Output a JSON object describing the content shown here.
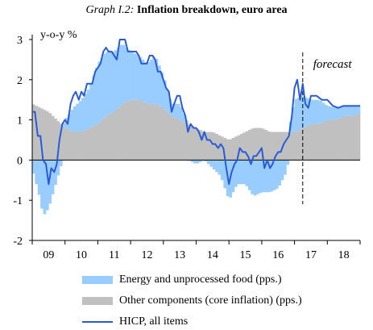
{
  "title": {
    "prefix": "Graph I.2:",
    "main": "Inflation breakdown, euro area"
  },
  "colors": {
    "energy": "#99ccff",
    "core": "#c0c0c0",
    "hicp": "#2a5bd7",
    "axis": "#000000"
  },
  "chart_data": {
    "type": "bar",
    "ylabel": "y-o-y %",
    "ylim": [
      -2,
      3
    ],
    "yticks": [
      -2,
      -1,
      0,
      1,
      2,
      3
    ],
    "x_start": 2009,
    "x_end": 2019,
    "xticks": [
      "09",
      "10",
      "11",
      "12",
      "13",
      "14",
      "15",
      "16",
      "17",
      "18"
    ],
    "forecast_label": "forecast",
    "forecast_start": 2017.25,
    "legend": [
      {
        "key": "energy",
        "label": "Energy and unprocessed food (pps.)"
      },
      {
        "key": "core",
        "label": "Other components (core inflation) (pps.)"
      },
      {
        "key": "hicp",
        "label": "HICP, all items"
      }
    ],
    "core_points": [
      [
        2009.0,
        1.4
      ],
      [
        2009.25,
        1.3
      ],
      [
        2009.5,
        1.2
      ],
      [
        2009.75,
        1.0
      ],
      [
        2010.0,
        0.8
      ],
      [
        2010.25,
        0.7
      ],
      [
        2010.5,
        0.7
      ],
      [
        2010.75,
        0.8
      ],
      [
        2011.0,
        0.9
      ],
      [
        2011.25,
        1.1
      ],
      [
        2011.5,
        1.2
      ],
      [
        2011.75,
        1.4
      ],
      [
        2012.0,
        1.5
      ],
      [
        2012.25,
        1.5
      ],
      [
        2012.5,
        1.4
      ],
      [
        2012.75,
        1.4
      ],
      [
        2013.0,
        1.3
      ],
      [
        2013.25,
        1.1
      ],
      [
        2013.5,
        1.0
      ],
      [
        2013.75,
        0.9
      ],
      [
        2014.0,
        0.8
      ],
      [
        2014.25,
        0.7
      ],
      [
        2014.5,
        0.7
      ],
      [
        2014.75,
        0.6
      ],
      [
        2015.0,
        0.5
      ],
      [
        2015.25,
        0.6
      ],
      [
        2015.5,
        0.7
      ],
      [
        2015.75,
        0.8
      ],
      [
        2016.0,
        0.8
      ],
      [
        2016.25,
        0.7
      ],
      [
        2016.5,
        0.7
      ],
      [
        2016.75,
        0.7
      ],
      [
        2017.0,
        0.7
      ],
      [
        2017.25,
        0.8
      ],
      [
        2017.5,
        0.9
      ],
      [
        2017.75,
        0.9
      ],
      [
        2018.0,
        1.0
      ],
      [
        2018.25,
        1.0
      ],
      [
        2018.5,
        1.1
      ],
      [
        2018.75,
        1.1
      ],
      [
        2019.0,
        1.15
      ]
    ],
    "energy_points": [
      [
        2009.0,
        -0.2
      ],
      [
        2009.25,
        -1.0
      ],
      [
        2009.33,
        -1.4
      ],
      [
        2009.5,
        -1.2
      ],
      [
        2009.75,
        -0.5
      ],
      [
        2010.0,
        0.2
      ],
      [
        2010.25,
        0.6
      ],
      [
        2010.5,
        0.8
      ],
      [
        2010.75,
        1.0
      ],
      [
        2011.0,
        1.5
      ],
      [
        2011.25,
        1.6
      ],
      [
        2011.5,
        1.5
      ],
      [
        2011.75,
        1.5
      ],
      [
        2012.0,
        1.2
      ],
      [
        2012.25,
        1.1
      ],
      [
        2012.5,
        1.0
      ],
      [
        2012.75,
        1.2
      ],
      [
        2013.0,
        0.8
      ],
      [
        2013.25,
        0.3
      ],
      [
        2013.5,
        0.4
      ],
      [
        2013.75,
        0.0
      ],
      [
        2014.0,
        -0.1
      ],
      [
        2014.25,
        0.0
      ],
      [
        2014.5,
        -0.2
      ],
      [
        2014.75,
        -0.4
      ],
      [
        2015.0,
        -1.0
      ],
      [
        2015.25,
        -0.6
      ],
      [
        2015.5,
        -0.6
      ],
      [
        2015.75,
        -0.9
      ],
      [
        2016.0,
        -0.8
      ],
      [
        2016.25,
        -0.8
      ],
      [
        2016.5,
        -0.7
      ],
      [
        2016.75,
        -0.3
      ],
      [
        2017.0,
        0.8
      ],
      [
        2017.25,
        0.8
      ],
      [
        2017.5,
        0.6
      ],
      [
        2017.75,
        0.6
      ],
      [
        2018.0,
        0.35
      ],
      [
        2018.25,
        0.3
      ],
      [
        2018.5,
        0.25
      ],
      [
        2018.75,
        0.25
      ],
      [
        2019.0,
        0.2
      ]
    ],
    "hicp": [
      [
        2009.0,
        1.2
      ],
      [
        2009.08,
        1.2
      ],
      [
        2009.17,
        0.6
      ],
      [
        2009.25,
        0.6
      ],
      [
        2009.33,
        0.0
      ],
      [
        2009.42,
        -0.1
      ],
      [
        2009.5,
        -0.6
      ],
      [
        2009.58,
        -0.2
      ],
      [
        2009.67,
        -0.3
      ],
      [
        2009.75,
        -0.1
      ],
      [
        2009.83,
        0.5
      ],
      [
        2009.92,
        0.9
      ],
      [
        2010.0,
        1.0
      ],
      [
        2010.08,
        0.9
      ],
      [
        2010.17,
        1.4
      ],
      [
        2010.25,
        1.6
      ],
      [
        2010.33,
        1.7
      ],
      [
        2010.42,
        1.5
      ],
      [
        2010.5,
        1.7
      ],
      [
        2010.58,
        1.6
      ],
      [
        2010.67,
        1.9
      ],
      [
        2010.75,
        1.9
      ],
      [
        2010.83,
        1.9
      ],
      [
        2010.92,
        2.2
      ],
      [
        2011.0,
        2.3
      ],
      [
        2011.08,
        2.4
      ],
      [
        2011.17,
        2.7
      ],
      [
        2011.25,
        2.8
      ],
      [
        2011.33,
        2.7
      ],
      [
        2011.42,
        2.7
      ],
      [
        2011.5,
        2.6
      ],
      [
        2011.58,
        2.5
      ],
      [
        2011.67,
        3.0
      ],
      [
        2011.75,
        3.0
      ],
      [
        2011.83,
        3.0
      ],
      [
        2011.92,
        2.7
      ],
      [
        2012.0,
        2.7
      ],
      [
        2012.08,
        2.7
      ],
      [
        2012.17,
        2.7
      ],
      [
        2012.25,
        2.6
      ],
      [
        2012.33,
        2.4
      ],
      [
        2012.42,
        2.4
      ],
      [
        2012.5,
        2.4
      ],
      [
        2012.58,
        2.6
      ],
      [
        2012.67,
        2.6
      ],
      [
        2012.75,
        2.5
      ],
      [
        2012.83,
        2.2
      ],
      [
        2012.92,
        2.2
      ],
      [
        2013.0,
        2.0
      ],
      [
        2013.08,
        1.8
      ],
      [
        2013.17,
        1.7
      ],
      [
        2013.25,
        1.2
      ],
      [
        2013.33,
        1.4
      ],
      [
        2013.42,
        1.6
      ],
      [
        2013.5,
        1.6
      ],
      [
        2013.58,
        1.3
      ],
      [
        2013.67,
        1.1
      ],
      [
        2013.75,
        0.7
      ],
      [
        2013.83,
        0.9
      ],
      [
        2013.92,
        0.8
      ],
      [
        2014.0,
        0.8
      ],
      [
        2014.08,
        0.7
      ],
      [
        2014.17,
        0.5
      ],
      [
        2014.25,
        0.7
      ],
      [
        2014.33,
        0.5
      ],
      [
        2014.42,
        0.5
      ],
      [
        2014.5,
        0.4
      ],
      [
        2014.58,
        0.4
      ],
      [
        2014.67,
        0.3
      ],
      [
        2014.75,
        0.4
      ],
      [
        2014.83,
        0.3
      ],
      [
        2014.92,
        -0.2
      ],
      [
        2015.0,
        -0.6
      ],
      [
        2015.08,
        -0.3
      ],
      [
        2015.17,
        -0.1
      ],
      [
        2015.25,
        0.0
      ],
      [
        2015.33,
        0.3
      ],
      [
        2015.42,
        0.2
      ],
      [
        2015.5,
        0.2
      ],
      [
        2015.58,
        0.1
      ],
      [
        2015.67,
        -0.1
      ],
      [
        2015.75,
        0.1
      ],
      [
        2015.83,
        0.1
      ],
      [
        2015.92,
        0.2
      ],
      [
        2016.0,
        0.3
      ],
      [
        2016.08,
        -0.2
      ],
      [
        2016.17,
        0.0
      ],
      [
        2016.25,
        -0.2
      ],
      [
        2016.33,
        -0.1
      ],
      [
        2016.42,
        0.1
      ],
      [
        2016.5,
        0.2
      ],
      [
        2016.58,
        0.2
      ],
      [
        2016.67,
        0.4
      ],
      [
        2016.75,
        0.5
      ],
      [
        2016.83,
        0.6
      ],
      [
        2016.92,
        1.1
      ],
      [
        2017.0,
        1.8
      ],
      [
        2017.08,
        2.0
      ],
      [
        2017.17,
        1.5
      ],
      [
        2017.25,
        1.9
      ],
      [
        2017.33,
        1.4
      ],
      [
        2017.42,
        1.3
      ],
      [
        2017.5,
        1.6
      ],
      [
        2017.67,
        1.6
      ],
      [
        2017.83,
        1.5
      ],
      [
        2018.0,
        1.5
      ],
      [
        2018.17,
        1.35
      ],
      [
        2018.33,
        1.3
      ],
      [
        2018.5,
        1.35
      ],
      [
        2018.67,
        1.35
      ],
      [
        2018.83,
        1.35
      ],
      [
        2019.0,
        1.35
      ]
    ]
  }
}
